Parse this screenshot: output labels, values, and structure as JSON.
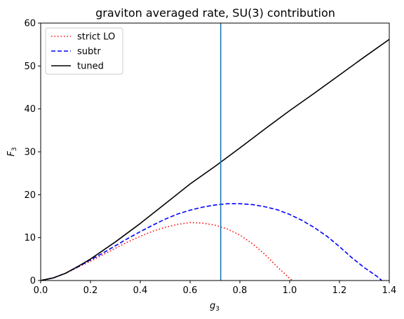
{
  "chart_data": {
    "type": "line",
    "title": "graviton averaged rate, SU(3) contribution",
    "xlabel": "g",
    "xlabel_sub": "3",
    "ylabel": "F",
    "ylabel_sub": "3",
    "xlim": [
      0.0,
      1.4
    ],
    "ylim": [
      0,
      60
    ],
    "x_ticks": [
      0.0,
      0.2,
      0.4,
      0.6,
      0.8,
      1.0,
      1.2,
      1.4
    ],
    "x_tick_labels": [
      "0.0",
      "0.2",
      "0.4",
      "0.6",
      "0.8",
      "1.0",
      "1.2",
      "1.4"
    ],
    "y_ticks": [
      0,
      10,
      20,
      30,
      40,
      50,
      60
    ],
    "y_tick_labels": [
      "0",
      "10",
      "20",
      "30",
      "40",
      "50",
      "60"
    ],
    "grid": false,
    "legend_position": "top-left",
    "vertical_line": {
      "x": 0.723,
      "color": "#1f77b4"
    },
    "series": [
      {
        "name": "strict LO",
        "color": "#ff0000",
        "style": "dotted",
        "x": [
          0.0,
          0.05,
          0.1,
          0.15,
          0.2,
          0.25,
          0.3,
          0.35,
          0.4,
          0.45,
          0.5,
          0.55,
          0.6,
          0.65,
          0.7,
          0.75,
          0.8,
          0.85,
          0.9,
          0.95,
          1.0,
          1.01
        ],
        "y": [
          0.0,
          0.6,
          1.7,
          3.1,
          4.5,
          6.0,
          7.5,
          9.0,
          10.3,
          11.5,
          12.4,
          13.1,
          13.5,
          13.4,
          12.9,
          12.0,
          10.6,
          8.6,
          6.1,
          3.2,
          0.5,
          0.0
        ]
      },
      {
        "name": "subtr",
        "color": "#0000ff",
        "style": "dashed",
        "x": [
          0.0,
          0.05,
          0.1,
          0.15,
          0.2,
          0.25,
          0.3,
          0.35,
          0.4,
          0.45,
          0.5,
          0.55,
          0.6,
          0.65,
          0.7,
          0.75,
          0.8,
          0.85,
          0.9,
          0.95,
          1.0,
          1.05,
          1.1,
          1.15,
          1.2,
          1.25,
          1.3,
          1.35,
          1.37
        ],
        "y": [
          0.0,
          0.6,
          1.7,
          3.2,
          4.8,
          6.4,
          8.1,
          9.8,
          11.4,
          12.9,
          14.3,
          15.5,
          16.4,
          17.1,
          17.6,
          17.9,
          17.9,
          17.7,
          17.2,
          16.5,
          15.4,
          14.0,
          12.3,
          10.3,
          7.9,
          5.3,
          3.0,
          1.0,
          0.0
        ]
      },
      {
        "name": "tuned",
        "color": "#000000",
        "style": "solid",
        "x": [
          0.0,
          0.05,
          0.1,
          0.15,
          0.2,
          0.3,
          0.4,
          0.5,
          0.6,
          0.7,
          0.8,
          0.9,
          1.0,
          1.1,
          1.2,
          1.3,
          1.4
        ],
        "y": [
          0.0,
          0.6,
          1.7,
          3.3,
          5.0,
          9.0,
          13.3,
          17.9,
          22.5,
          26.6,
          30.9,
          35.3,
          39.6,
          43.7,
          47.9,
          52.1,
          56.2
        ]
      }
    ]
  }
}
